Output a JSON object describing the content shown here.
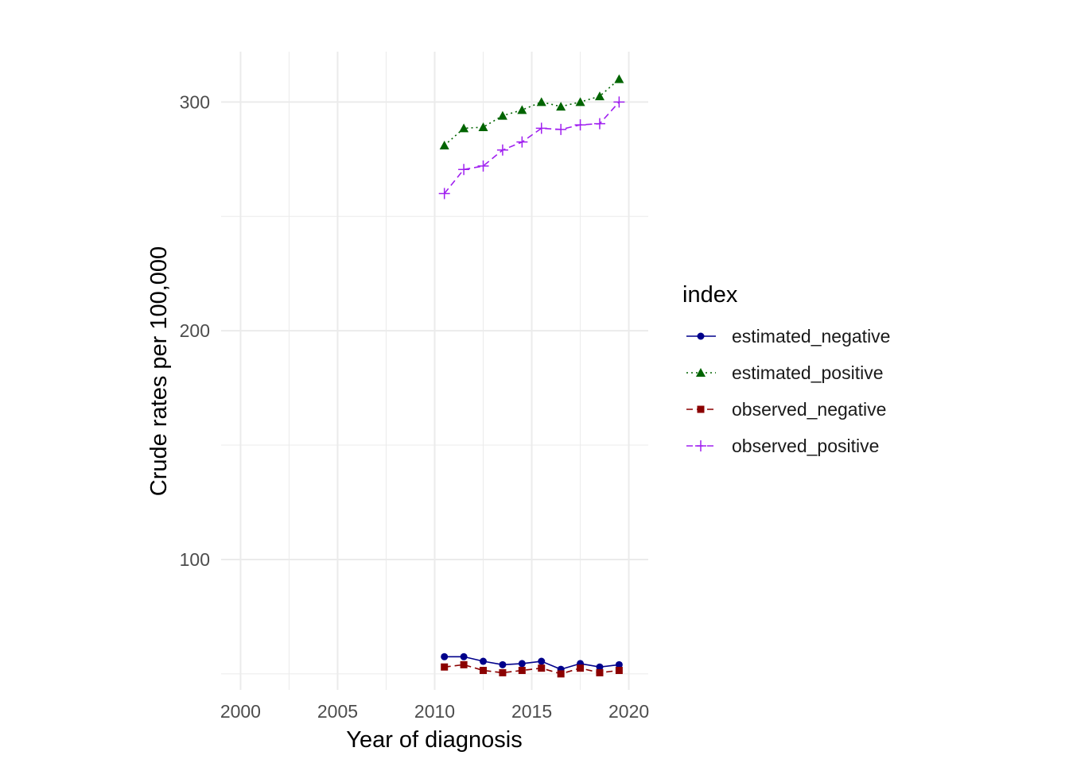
{
  "chart_data": {
    "type": "line",
    "xlabel": "Year of diagnosis",
    "ylabel": "Crude rates per 100,000",
    "xlim": [
      1999,
      2021
    ],
    "ylim": [
      43,
      322
    ],
    "x_ticks": [
      2000,
      2005,
      2010,
      2015,
      2020
    ],
    "y_ticks": [
      100,
      200,
      300
    ],
    "grid": true,
    "legend": {
      "title": "index",
      "position": "right"
    },
    "x": [
      2010.5,
      2011.5,
      2012.5,
      2013.5,
      2014.5,
      2015.5,
      2016.5,
      2017.5,
      2018.5,
      2019.5
    ],
    "series": [
      {
        "name": "estimated_negative",
        "color": "#00008b",
        "linestyle": "solid",
        "marker": "circle",
        "values": [
          57.5,
          57.5,
          55.5,
          54.0,
          54.5,
          55.5,
          52.0,
          54.5,
          53.0,
          54.0
        ]
      },
      {
        "name": "estimated_positive",
        "color": "#006400",
        "linestyle": "dotted",
        "marker": "triangle",
        "values": [
          281,
          288.5,
          289,
          294,
          296.5,
          300,
          298,
          300,
          302.5,
          310
        ]
      },
      {
        "name": "observed_negative",
        "color": "#8b0000",
        "linestyle": "dashed",
        "marker": "square",
        "values": [
          53,
          54,
          51.5,
          50.5,
          51.5,
          52.5,
          50,
          52.5,
          50.5,
          51.5
        ]
      },
      {
        "name": "observed_positive",
        "color": "#a020f0",
        "linestyle": "dashed",
        "marker": "plus",
        "values": [
          260,
          270.5,
          272,
          279,
          282.5,
          288.5,
          288,
          290,
          290.5,
          300
        ]
      }
    ]
  }
}
